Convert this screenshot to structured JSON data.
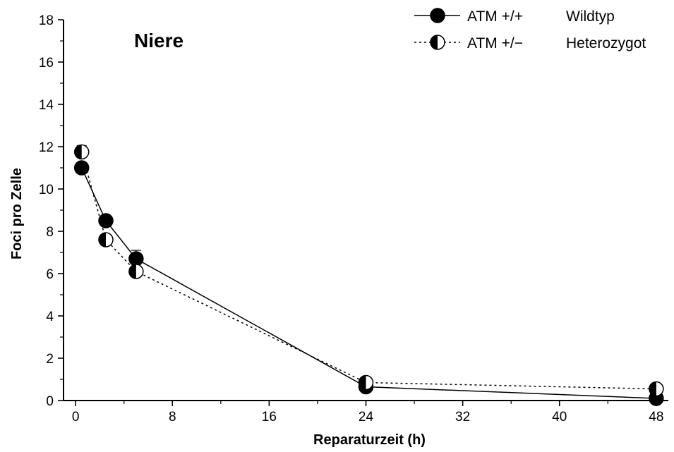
{
  "chart_data": {
    "type": "line",
    "title": "Niere",
    "xlabel": "Reparaturzeit (h)",
    "ylabel": "Foci pro Zelle",
    "xlim": [
      -1,
      49
    ],
    "ylim": [
      0,
      18
    ],
    "x_ticks": [
      "0",
      "8",
      "16",
      "24",
      "32",
      "40",
      "48"
    ],
    "y_ticks": [
      "0",
      "2",
      "4",
      "6",
      "8",
      "10",
      "12",
      "14",
      "16",
      "18"
    ],
    "grid": false,
    "legend_position": "top-right",
    "series": [
      {
        "name": "ATM +/+",
        "group": "Wildtyp",
        "marker": "filled-circle",
        "line_style": "solid",
        "color": "#000000",
        "points": [
          {
            "x": 0.5,
            "y": 11.0,
            "err": 0.2
          },
          {
            "x": 2.5,
            "y": 8.5,
            "err": 0.2
          },
          {
            "x": 5.0,
            "y": 6.7,
            "err": 0.4
          },
          {
            "x": 24.0,
            "y": 0.65,
            "err": 0.1
          },
          {
            "x": 48.0,
            "y": 0.1,
            "err": 0.05
          }
        ]
      },
      {
        "name": "ATM +/−",
        "group": "Heterozygot",
        "marker": "half-filled-circle",
        "line_style": "dotted",
        "color": "#000000",
        "points": [
          {
            "x": 0.5,
            "y": 11.75,
            "err": 0.3
          },
          {
            "x": 2.5,
            "y": 7.6,
            "err": 0.2
          },
          {
            "x": 5.0,
            "y": 6.1,
            "err": 0.2
          },
          {
            "x": 24.0,
            "y": 0.85,
            "err": 0.1
          },
          {
            "x": 48.0,
            "y": 0.55,
            "err": 0.1
          }
        ]
      }
    ]
  }
}
